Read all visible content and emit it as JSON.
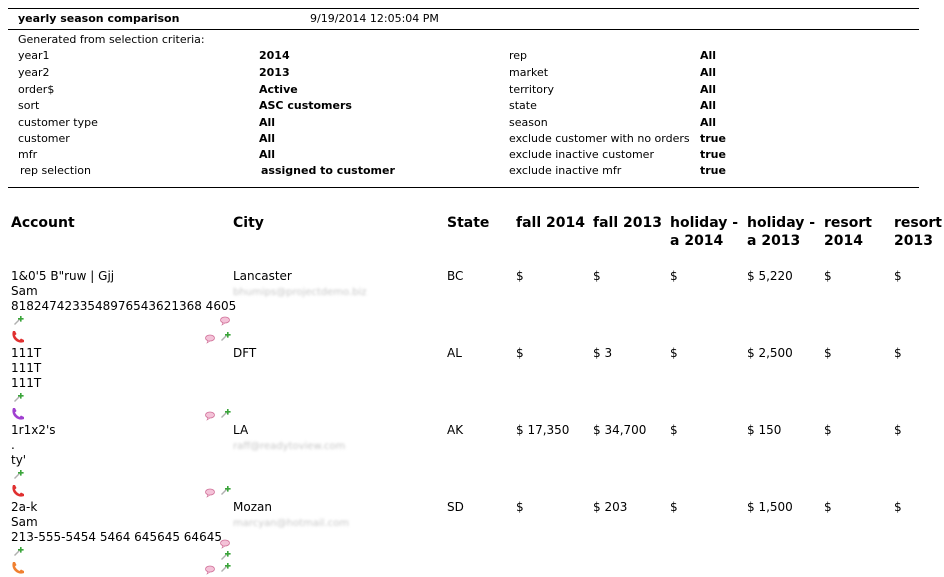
{
  "report": {
    "title": "yearly season comparison",
    "timestamp": "9/19/2014 12:05:04 PM"
  },
  "criteria": {
    "intro": "Generated from selection criteria:",
    "left": [
      {
        "key": "year1",
        "value": "2014"
      },
      {
        "key": "year2",
        "value": "2013"
      },
      {
        "key": "order$",
        "value": "Active"
      },
      {
        "key": "sort",
        "value": "ASC customers"
      },
      {
        "key": "customer type",
        "value": "All"
      },
      {
        "key": "customer",
        "value": "All"
      },
      {
        "key": "mfr",
        "value": "All"
      },
      {
        "key": "rep selection",
        "value": "assigned to customer"
      }
    ],
    "right": [
      {
        "key": "rep",
        "value": "All"
      },
      {
        "key": "market",
        "value": "All"
      },
      {
        "key": "territory",
        "value": "All"
      },
      {
        "key": "state",
        "value": "All"
      },
      {
        "key": "season",
        "value": "All"
      },
      {
        "key": "exclude customer with no orders",
        "value": "true"
      },
      {
        "key": "exclude inactive customer",
        "value": "true"
      },
      {
        "key": "exclude inactive mfr",
        "value": "true"
      }
    ]
  },
  "table": {
    "headers": {
      "account": "Account",
      "city": "City",
      "state": "State",
      "fall2014": "fall 2014",
      "fall2013": "fall 2013",
      "holiday2014_l1": "holiday -",
      "holiday2014_l2": "a 2014",
      "holiday2013_l1": "holiday -",
      "holiday2013_l2": "a 2013",
      "resort2014_l1": "resort",
      "resort2014_l2": "2014",
      "resort2013_l1": "resort",
      "resort2013_l2": "2013"
    },
    "rows": [
      {
        "account": [
          "1&0'5 B\"ruw | Gjj",
          "Sam",
          "8182474233548976543621368 4605"
        ],
        "city": "Lancaster",
        "email": "bhumips@projectdemo.biz",
        "state": "BC",
        "fall2014": "$",
        "fall2013": "$",
        "holiday2014": "$",
        "holiday2013": "$ 5,220",
        "resort2014": "$",
        "resort2013": "$",
        "phone_color": "#e03030"
      },
      {
        "account": [
          "111T",
          "111T",
          "111T"
        ],
        "city": "DFT",
        "email": "",
        "state": "AL",
        "fall2014": "$",
        "fall2013": "$ 3",
        "holiday2014": "$",
        "holiday2013": "$ 2,500",
        "resort2014": "$",
        "resort2013": "$",
        "phone_color": "#a040d0"
      },
      {
        "account": [
          "1r1x2's",
          ".",
          "ty'"
        ],
        "city": "LA",
        "email": "raff@readytoview.com",
        "state": "AK",
        "fall2014": "$ 17,350",
        "fall2013": "$ 34,700",
        "holiday2014": "$",
        "holiday2013": "$ 150",
        "resort2014": "$",
        "resort2013": "$",
        "phone_color": "#e03030"
      },
      {
        "account": [
          "2a-k",
          "Sam",
          "213-555-5454 5464 645645 64645"
        ],
        "city": "Mozan",
        "email": "marcyan@hotmail.com",
        "state": "SD",
        "fall2014": "$",
        "fall2013": "$ 203",
        "holiday2014": "$",
        "holiday2013": "$ 1,500",
        "resort2014": "$",
        "resort2013": "$",
        "phone_color": "#f08030"
      }
    ]
  },
  "icons": {
    "add_contact": "add-contact-icon",
    "phone": "phone-icon",
    "note": "note-icon",
    "edit": "edit-icon"
  }
}
